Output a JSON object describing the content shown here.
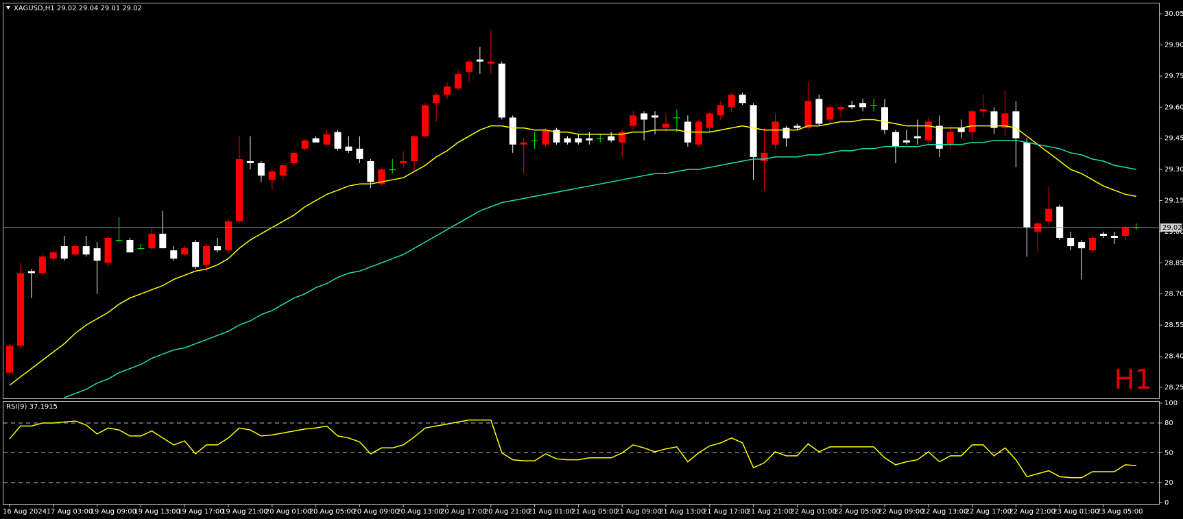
{
  "chart_data": [
    {
      "type": "candlestick",
      "title": "XAGUSD,H1  29.02 29.04 29.01 29.02",
      "watermark": "H1",
      "categories": [
        "16 Aug 2024",
        null,
        null,
        null,
        "17 Aug 03:00",
        null,
        null,
        null,
        "19 Aug 09:00",
        null,
        null,
        null,
        "19 Aug 13:00",
        null,
        null,
        null,
        "19 Aug 17:00",
        null,
        null,
        null,
        "19 Aug 21:00",
        null,
        null,
        null,
        "20 Aug 01:00",
        null,
        null,
        null,
        "20 Aug 05:00",
        null,
        null,
        null,
        "20 Aug 09:00",
        null,
        null,
        null,
        "20 Aug 13:00",
        null,
        null,
        null,
        "20 Aug 17:00",
        null,
        null,
        null,
        "20 Aug 21:00",
        null,
        null,
        null,
        "21 Aug 01:00",
        null,
        null,
        null,
        "21 Aug 05:00",
        null,
        null,
        null,
        "21 Aug 09:00",
        null,
        null,
        null,
        "21 Aug 13:00",
        null,
        null,
        null,
        "21 Aug 17:00",
        null,
        null,
        null,
        "21 Aug 21:00",
        null,
        null,
        null,
        "22 Aug 01:00",
        null,
        null,
        null,
        "22 Aug 05:00",
        null,
        null,
        null,
        "22 Aug 09:00",
        null,
        null,
        null,
        "22 Aug 13:00",
        null,
        null,
        null,
        "22 Aug 17:00",
        null,
        null,
        null,
        "22 Aug 21:00",
        null,
        null,
        null,
        "23 Aug 01:00",
        null,
        null,
        null,
        "23 Aug 05:00",
        null,
        null,
        null
      ],
      "ohlc": [
        [
          28.32,
          28.46,
          28.31,
          28.45
        ],
        [
          28.45,
          28.85,
          28.44,
          28.8
        ],
        [
          28.81,
          28.82,
          28.68,
          28.8
        ],
        [
          28.8,
          28.89,
          28.79,
          28.88
        ],
        [
          28.87,
          28.91,
          28.86,
          28.9
        ],
        [
          28.93,
          28.98,
          28.86,
          28.87
        ],
        [
          28.89,
          28.94,
          28.88,
          28.93
        ],
        [
          28.93,
          28.98,
          28.88,
          28.89
        ],
        [
          28.92,
          28.95,
          28.7,
          28.86
        ],
        [
          28.85,
          28.98,
          28.83,
          28.97
        ],
        [
          28.96,
          29.07,
          28.95,
          28.96
        ],
        [
          28.96,
          28.97,
          28.9,
          28.9
        ],
        [
          28.92,
          28.94,
          28.91,
          28.92
        ],
        [
          28.92,
          29.02,
          28.91,
          28.99
        ],
        [
          28.99,
          29.1,
          28.92,
          28.92
        ],
        [
          28.91,
          28.93,
          28.86,
          28.87
        ],
        [
          28.89,
          28.93,
          28.88,
          28.92
        ],
        [
          28.95,
          28.96,
          28.82,
          28.83
        ],
        [
          28.84,
          28.94,
          28.81,
          28.93
        ],
        [
          28.93,
          28.97,
          28.9,
          28.91
        ],
        [
          28.91,
          29.06,
          28.9,
          29.05
        ],
        [
          29.05,
          29.46,
          29.04,
          29.35
        ],
        [
          29.34,
          29.46,
          29.3,
          29.33
        ],
        [
          29.33,
          29.34,
          29.24,
          29.27
        ],
        [
          29.25,
          29.3,
          29.2,
          29.29
        ],
        [
          29.27,
          29.33,
          29.25,
          29.32
        ],
        [
          29.33,
          29.39,
          29.32,
          29.38
        ],
        [
          29.4,
          29.45,
          29.39,
          29.44
        ],
        [
          29.45,
          29.46,
          29.43,
          29.43
        ],
        [
          29.42,
          29.49,
          29.41,
          29.47
        ],
        [
          29.48,
          29.49,
          29.39,
          29.4
        ],
        [
          29.41,
          29.46,
          29.38,
          29.39
        ],
        [
          29.4,
          29.46,
          29.33,
          29.35
        ],
        [
          29.34,
          29.35,
          29.21,
          29.24
        ],
        [
          29.23,
          29.31,
          29.22,
          29.3
        ],
        [
          29.3,
          29.35,
          29.28,
          29.3
        ],
        [
          29.33,
          29.39,
          29.31,
          29.34
        ],
        [
          29.34,
          29.46,
          29.29,
          29.46
        ],
        [
          29.46,
          29.62,
          29.45,
          29.61
        ],
        [
          29.62,
          29.67,
          29.53,
          29.66
        ],
        [
          29.66,
          29.72,
          29.64,
          29.7
        ],
        [
          29.69,
          29.78,
          29.68,
          29.76
        ],
        [
          29.77,
          29.83,
          29.72,
          29.82
        ],
        [
          29.83,
          29.89,
          29.76,
          29.82
        ],
        [
          29.81,
          29.97,
          29.76,
          29.82
        ],
        [
          29.81,
          29.82,
          29.54,
          29.55
        ],
        [
          29.55,
          29.56,
          29.38,
          29.42
        ],
        [
          29.42,
          29.45,
          29.28,
          29.43
        ],
        [
          29.44,
          29.48,
          29.4,
          29.44
        ],
        [
          29.42,
          29.5,
          29.41,
          29.49
        ],
        [
          29.49,
          29.5,
          29.42,
          29.43
        ],
        [
          29.45,
          29.46,
          29.42,
          29.43
        ],
        [
          29.45,
          29.47,
          29.42,
          29.43
        ],
        [
          29.45,
          29.48,
          29.42,
          29.44
        ],
        [
          29.45,
          29.47,
          29.43,
          29.45
        ],
        [
          29.46,
          29.48,
          29.43,
          29.44
        ],
        [
          29.43,
          29.49,
          29.36,
          29.48
        ],
        [
          29.51,
          29.58,
          29.49,
          29.56
        ],
        [
          29.57,
          29.58,
          29.44,
          29.54
        ],
        [
          29.56,
          29.58,
          29.47,
          29.55
        ],
        [
          29.5,
          29.57,
          29.48,
          29.52
        ],
        [
          29.55,
          29.59,
          29.48,
          29.55
        ],
        [
          29.53,
          29.56,
          29.41,
          29.43
        ],
        [
          29.42,
          29.54,
          29.41,
          29.53
        ],
        [
          29.5,
          29.58,
          29.48,
          29.57
        ],
        [
          29.56,
          29.63,
          29.54,
          29.61
        ],
        [
          29.6,
          29.67,
          29.58,
          29.66
        ],
        [
          29.66,
          29.67,
          29.61,
          29.62
        ],
        [
          29.61,
          29.62,
          29.25,
          29.36
        ],
        [
          29.34,
          29.5,
          29.2,
          29.38
        ],
        [
          29.42,
          29.57,
          29.4,
          29.53
        ],
        [
          29.5,
          29.51,
          29.41,
          29.45
        ],
        [
          29.51,
          29.52,
          29.49,
          29.5
        ],
        [
          29.5,
          29.72,
          29.49,
          29.63
        ],
        [
          29.64,
          29.66,
          29.51,
          29.52
        ],
        [
          29.54,
          29.61,
          29.52,
          29.6
        ],
        [
          29.59,
          29.61,
          29.55,
          29.6
        ],
        [
          29.61,
          29.63,
          29.59,
          29.6
        ],
        [
          29.62,
          29.64,
          29.58,
          29.6
        ],
        [
          29.61,
          29.64,
          29.58,
          29.61
        ],
        [
          29.6,
          29.64,
          29.47,
          29.49
        ],
        [
          29.48,
          29.49,
          29.33,
          29.41
        ],
        [
          29.44,
          29.49,
          29.42,
          29.43
        ],
        [
          29.46,
          29.54,
          29.42,
          29.45
        ],
        [
          29.44,
          29.55,
          29.42,
          29.53
        ],
        [
          29.51,
          29.56,
          29.36,
          29.4
        ],
        [
          29.42,
          29.51,
          29.4,
          29.48
        ],
        [
          29.5,
          29.54,
          29.45,
          29.48
        ],
        [
          29.48,
          29.59,
          29.44,
          29.58
        ],
        [
          29.58,
          29.66,
          29.55,
          29.59
        ],
        [
          29.58,
          29.6,
          29.47,
          29.5
        ],
        [
          29.5,
          29.68,
          29.46,
          29.57
        ],
        [
          29.58,
          29.63,
          29.31,
          29.45
        ],
        [
          29.43,
          29.45,
          28.88,
          29.02
        ],
        [
          29.0,
          29.05,
          28.9,
          29.04
        ],
        [
          29.05,
          29.22,
          29.03,
          29.11
        ],
        [
          29.12,
          29.13,
          28.96,
          28.97
        ],
        [
          28.97,
          29.0,
          28.91,
          28.93
        ],
        [
          28.95,
          28.96,
          28.77,
          28.92
        ],
        [
          28.91,
          28.98,
          28.9,
          28.97
        ],
        [
          28.99,
          29.0,
          28.97,
          28.98
        ],
        [
          28.98,
          29.0,
          28.94,
          28.97
        ],
        [
          28.98,
          29.03,
          28.96,
          29.02
        ],
        [
          29.02,
          29.04,
          29.01,
          29.02
        ]
      ],
      "up_color": "#ff0000",
      "down_color": "#ffffff",
      "doji_color": "#00ff00",
      "series": [
        {
          "color": "#ffff00",
          "values": [
            28.26,
            28.3,
            28.34,
            28.38,
            28.42,
            28.46,
            28.51,
            28.55,
            28.58,
            28.61,
            28.65,
            28.68,
            28.7,
            28.72,
            28.74,
            28.77,
            28.79,
            28.81,
            28.82,
            28.84,
            28.87,
            28.92,
            28.96,
            28.99,
            29.02,
            29.05,
            29.08,
            29.12,
            29.15,
            29.18,
            29.2,
            29.22,
            29.23,
            29.23,
            29.24,
            29.25,
            29.26,
            29.29,
            29.32,
            29.36,
            29.39,
            29.43,
            29.46,
            29.49,
            29.51,
            29.51,
            29.5,
            29.5,
            29.49,
            29.49,
            29.48,
            29.48,
            29.47,
            29.47,
            29.47,
            29.47,
            29.47,
            29.48,
            29.48,
            29.49,
            29.49,
            29.49,
            29.48,
            29.48,
            29.48,
            29.49,
            29.5,
            29.51,
            29.5,
            29.49,
            29.49,
            29.49,
            29.49,
            29.51,
            29.51,
            29.52,
            29.53,
            29.53,
            29.54,
            29.54,
            29.53,
            29.52,
            29.51,
            29.51,
            29.51,
            29.5,
            29.5,
            29.5,
            29.51,
            29.51,
            29.51,
            29.51,
            29.5,
            29.46,
            29.42,
            29.38,
            29.34,
            29.3,
            29.28,
            29.25,
            29.22,
            29.2,
            29.18,
            29.17
          ]
        },
        {
          "color": "#20e0b0",
          "values": [
            null,
            null,
            null,
            null,
            null,
            28.2,
            28.22,
            28.24,
            28.27,
            28.29,
            28.32,
            28.34,
            28.36,
            28.39,
            28.41,
            28.43,
            28.44,
            28.46,
            28.48,
            28.5,
            28.52,
            28.55,
            28.57,
            28.6,
            28.62,
            28.65,
            28.68,
            28.7,
            28.73,
            28.75,
            28.78,
            28.8,
            28.81,
            28.83,
            28.85,
            28.87,
            28.89,
            28.92,
            28.95,
            28.98,
            29.01,
            29.04,
            29.07,
            29.1,
            29.12,
            29.14,
            29.15,
            29.16,
            29.17,
            29.18,
            29.19,
            29.2,
            29.21,
            29.22,
            29.23,
            29.24,
            29.25,
            29.26,
            29.27,
            29.28,
            29.28,
            29.29,
            29.3,
            29.3,
            29.31,
            29.32,
            29.33,
            29.34,
            29.35,
            29.35,
            29.36,
            29.36,
            29.36,
            29.37,
            29.37,
            29.38,
            29.39,
            29.39,
            29.4,
            29.4,
            29.41,
            29.41,
            29.41,
            29.41,
            29.42,
            29.42,
            29.42,
            29.42,
            29.43,
            29.43,
            29.44,
            29.44,
            29.44,
            29.43,
            29.42,
            29.41,
            29.4,
            29.38,
            29.37,
            29.35,
            29.34,
            29.32,
            29.31,
            29.3
          ]
        }
      ],
      "ylim": [
        28.2,
        30.1
      ],
      "yticks": [
        28.25,
        {
          "value": 28.4,
          "label": "28.40"
        },
        28.55,
        {
          "value": 28.7,
          "label": "28.70"
        },
        28.85,
        {
          "value": 29.0,
          "label": "29.00"
        },
        29.15,
        {
          "value": 29.3,
          "label": "29.30"
        },
        29.45,
        {
          "value": 29.6,
          "label": "29.60"
        },
        29.75,
        {
          "value": 29.9,
          "label": "29.90"
        },
        30.05
      ],
      "last_price": 29.02,
      "last_price_color": "#7090a0"
    },
    {
      "type": "line",
      "title": "RSI(9) 37.1915",
      "color": "#ffff00",
      "values": [
        64,
        77,
        77,
        80,
        80,
        81,
        82,
        78,
        69,
        75,
        73,
        67,
        67,
        72,
        65,
        58,
        62,
        49,
        58,
        58,
        65,
        75,
        73,
        67,
        68,
        70,
        72,
        74,
        75,
        77,
        67,
        65,
        61,
        49,
        55,
        55,
        58,
        66,
        75,
        77,
        79,
        81,
        83,
        83,
        83,
        50,
        43,
        42,
        42,
        49,
        44,
        43,
        43,
        45,
        45,
        45,
        50,
        58,
        55,
        51,
        54,
        56,
        41,
        50,
        57,
        60,
        65,
        60,
        35,
        40,
        51,
        47,
        47,
        59,
        51,
        56,
        56,
        56,
        56,
        56,
        45,
        38,
        41,
        43,
        51,
        41,
        47,
        47,
        58,
        58,
        47,
        55,
        43,
        26,
        29,
        32,
        26,
        25,
        25,
        31,
        31,
        31,
        38,
        37.1915
      ],
      "ylim": [
        0,
        100
      ],
      "yticks": [
        0,
        20,
        50,
        80,
        100
      ],
      "levels": [
        20,
        50,
        80
      ]
    }
  ]
}
